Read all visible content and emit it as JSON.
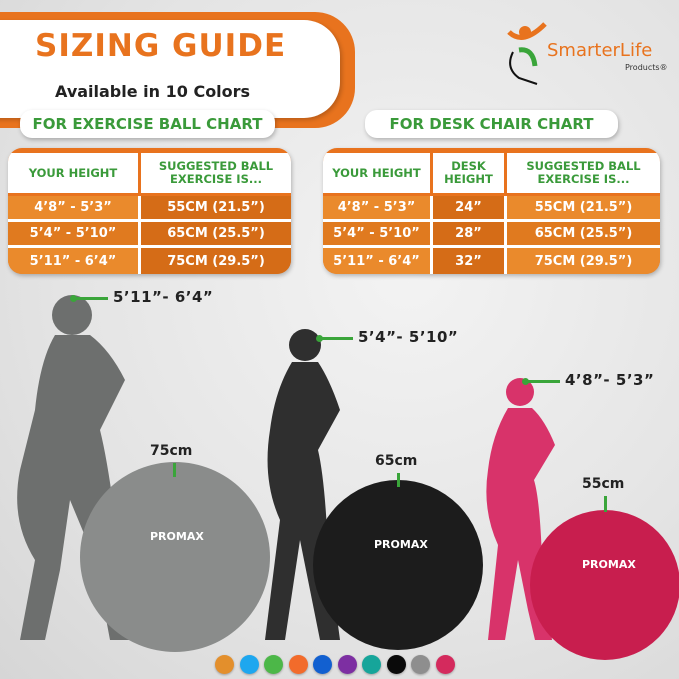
{
  "header": {
    "title": "SIZING GUIDE",
    "subtitle": "Available in 10 Colors"
  },
  "logo": {
    "name": "SmarterLife",
    "sub": "Products®"
  },
  "exercise_chart": {
    "label": "FOR EXERCISE BALL CHART",
    "headers": [
      "YOUR HEIGHT",
      "SUGGESTED BALL EXERCISE IS..."
    ],
    "rows": [
      [
        "4’8” - 5’3”",
        "55CM (21.5”)"
      ],
      [
        "5’4” - 5’10”",
        "65CM (25.5”)"
      ],
      [
        "5’11” - 6’4”",
        "75CM (29.5”)"
      ]
    ]
  },
  "desk_chart": {
    "label": "FOR DESK CHAIR CHART",
    "headers": [
      "YOUR HEIGHT",
      "DESK HEIGHT",
      "SUGGESTED BALL EXERCISE IS..."
    ],
    "rows": [
      [
        "4’8” - 5’3”",
        "24”",
        "55CM (21.5”)"
      ],
      [
        "5’4” - 5’10”",
        "28”",
        "65CM (25.5”)"
      ],
      [
        "5’11” - 6’4”",
        "32”",
        "75CM (29.5”)"
      ]
    ]
  },
  "figures": [
    {
      "height": "5’11”- 6’4”",
      "ball": "75cm",
      "color": "#6d6f6e",
      "ball_color": "#8a8c8b"
    },
    {
      "height": "5’4”- 5’10”",
      "ball": "65cm",
      "color": "#2f2f2f",
      "ball_color": "#1c1c1c"
    },
    {
      "height": "4’8”- 5’3”",
      "ball": "55cm",
      "color": "#d8336a",
      "ball_color": "#c81e4e"
    }
  ],
  "ball_brand": "PROMAX",
  "swatches": [
    "#e38f2c",
    "#1ea7ef",
    "#4cb748",
    "#f26b2b",
    "#1260d0",
    "#7d2fa2",
    "#16a59a",
    "#0a0a0a",
    "#8e8e8e",
    "#d42a5d"
  ]
}
